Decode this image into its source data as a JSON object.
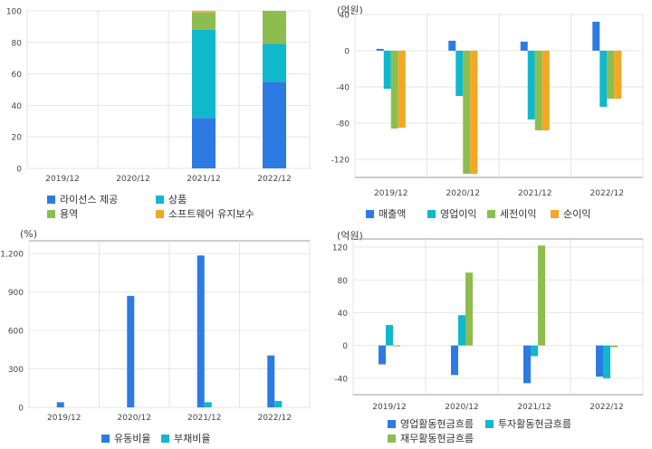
{
  "colors": {
    "blue": "#2d7be2",
    "cyan": "#10b8cc",
    "green": "#8cbd4e",
    "orange": "#f5a623",
    "grid": "#e6e6e6",
    "axis": "#999999"
  },
  "chart_data": [
    {
      "type": "bar",
      "stacked": true,
      "unit_label": "",
      "categories": [
        "2019/12",
        "2020/12",
        "2021/12",
        "2022/12"
      ],
      "ylim": [
        0,
        100
      ],
      "yticks": [
        0,
        20,
        40,
        60,
        80,
        100
      ],
      "grid": true,
      "legend_position": "bottom",
      "series": [
        {
          "name": "라이선스 제공",
          "color": "#2d7be2",
          "values": [
            0,
            0,
            32,
            55
          ]
        },
        {
          "name": "상품",
          "color": "#10b8cc",
          "values": [
            0,
            0,
            56,
            24
          ]
        },
        {
          "name": "용역",
          "color": "#8cbd4e",
          "values": [
            0,
            0,
            11,
            21
          ]
        },
        {
          "name": "소프트웨어 유지보수",
          "color": "#f5a623",
          "values": [
            0,
            0,
            1,
            0
          ]
        }
      ]
    },
    {
      "type": "bar",
      "unit_label": "(억원)",
      "categories": [
        "2019/12",
        "2020/12",
        "2021/12",
        "2022/12"
      ],
      "ylim": [
        -140,
        40
      ],
      "yticks": [
        -120,
        -80,
        -40,
        0,
        40
      ],
      "grid": true,
      "legend_position": "bottom",
      "series": [
        {
          "name": "매출액",
          "color": "#2d7be2",
          "values": [
            2,
            11,
            10,
            32
          ]
        },
        {
          "name": "영업이익",
          "color": "#10b8cc",
          "values": [
            -42,
            -50,
            -76,
            -62
          ]
        },
        {
          "name": "세전이익",
          "color": "#8cbd4e",
          "values": [
            -86,
            -136,
            -88,
            -53
          ]
        },
        {
          "name": "순이익",
          "color": "#f5a623",
          "values": [
            -85,
            -136,
            -88,
            -53
          ]
        }
      ]
    },
    {
      "type": "bar",
      "unit_label": "(%)",
      "categories": [
        "2019/12",
        "2020/12",
        "2021/12",
        "2022/12"
      ],
      "ylim": [
        0,
        1300
      ],
      "yticks": [
        0,
        300,
        600,
        900,
        1200
      ],
      "ytick_labels": [
        "0",
        "300",
        "600",
        "900",
        "1,200"
      ],
      "grid": true,
      "legend_position": "bottom",
      "series": [
        {
          "name": "유동비율",
          "color": "#2d7be2",
          "values": [
            40,
            870,
            1185,
            405
          ]
        },
        {
          "name": "부채비율",
          "color": "#10b8cc",
          "values": [
            0,
            0,
            40,
            50
          ]
        }
      ]
    },
    {
      "type": "bar",
      "unit_label": "(억원)",
      "categories": [
        "2019/12",
        "2020/12",
        "2021/12",
        "2022/12"
      ],
      "ylim": [
        -60,
        130
      ],
      "yticks": [
        -40,
        0,
        40,
        80,
        120
      ],
      "grid": true,
      "legend_position": "bottom",
      "series": [
        {
          "name": "영업활동현금흐름",
          "color": "#2d7be2",
          "values": [
            -23,
            -36,
            -46,
            -38
          ]
        },
        {
          "name": "투자활동현금흐름",
          "color": "#10b8cc",
          "values": [
            25,
            37,
            -13,
            -40
          ]
        },
        {
          "name": "재무활동현금흐름",
          "color": "#8cbd4e",
          "values": [
            -1,
            89,
            122,
            -2
          ]
        }
      ]
    }
  ]
}
